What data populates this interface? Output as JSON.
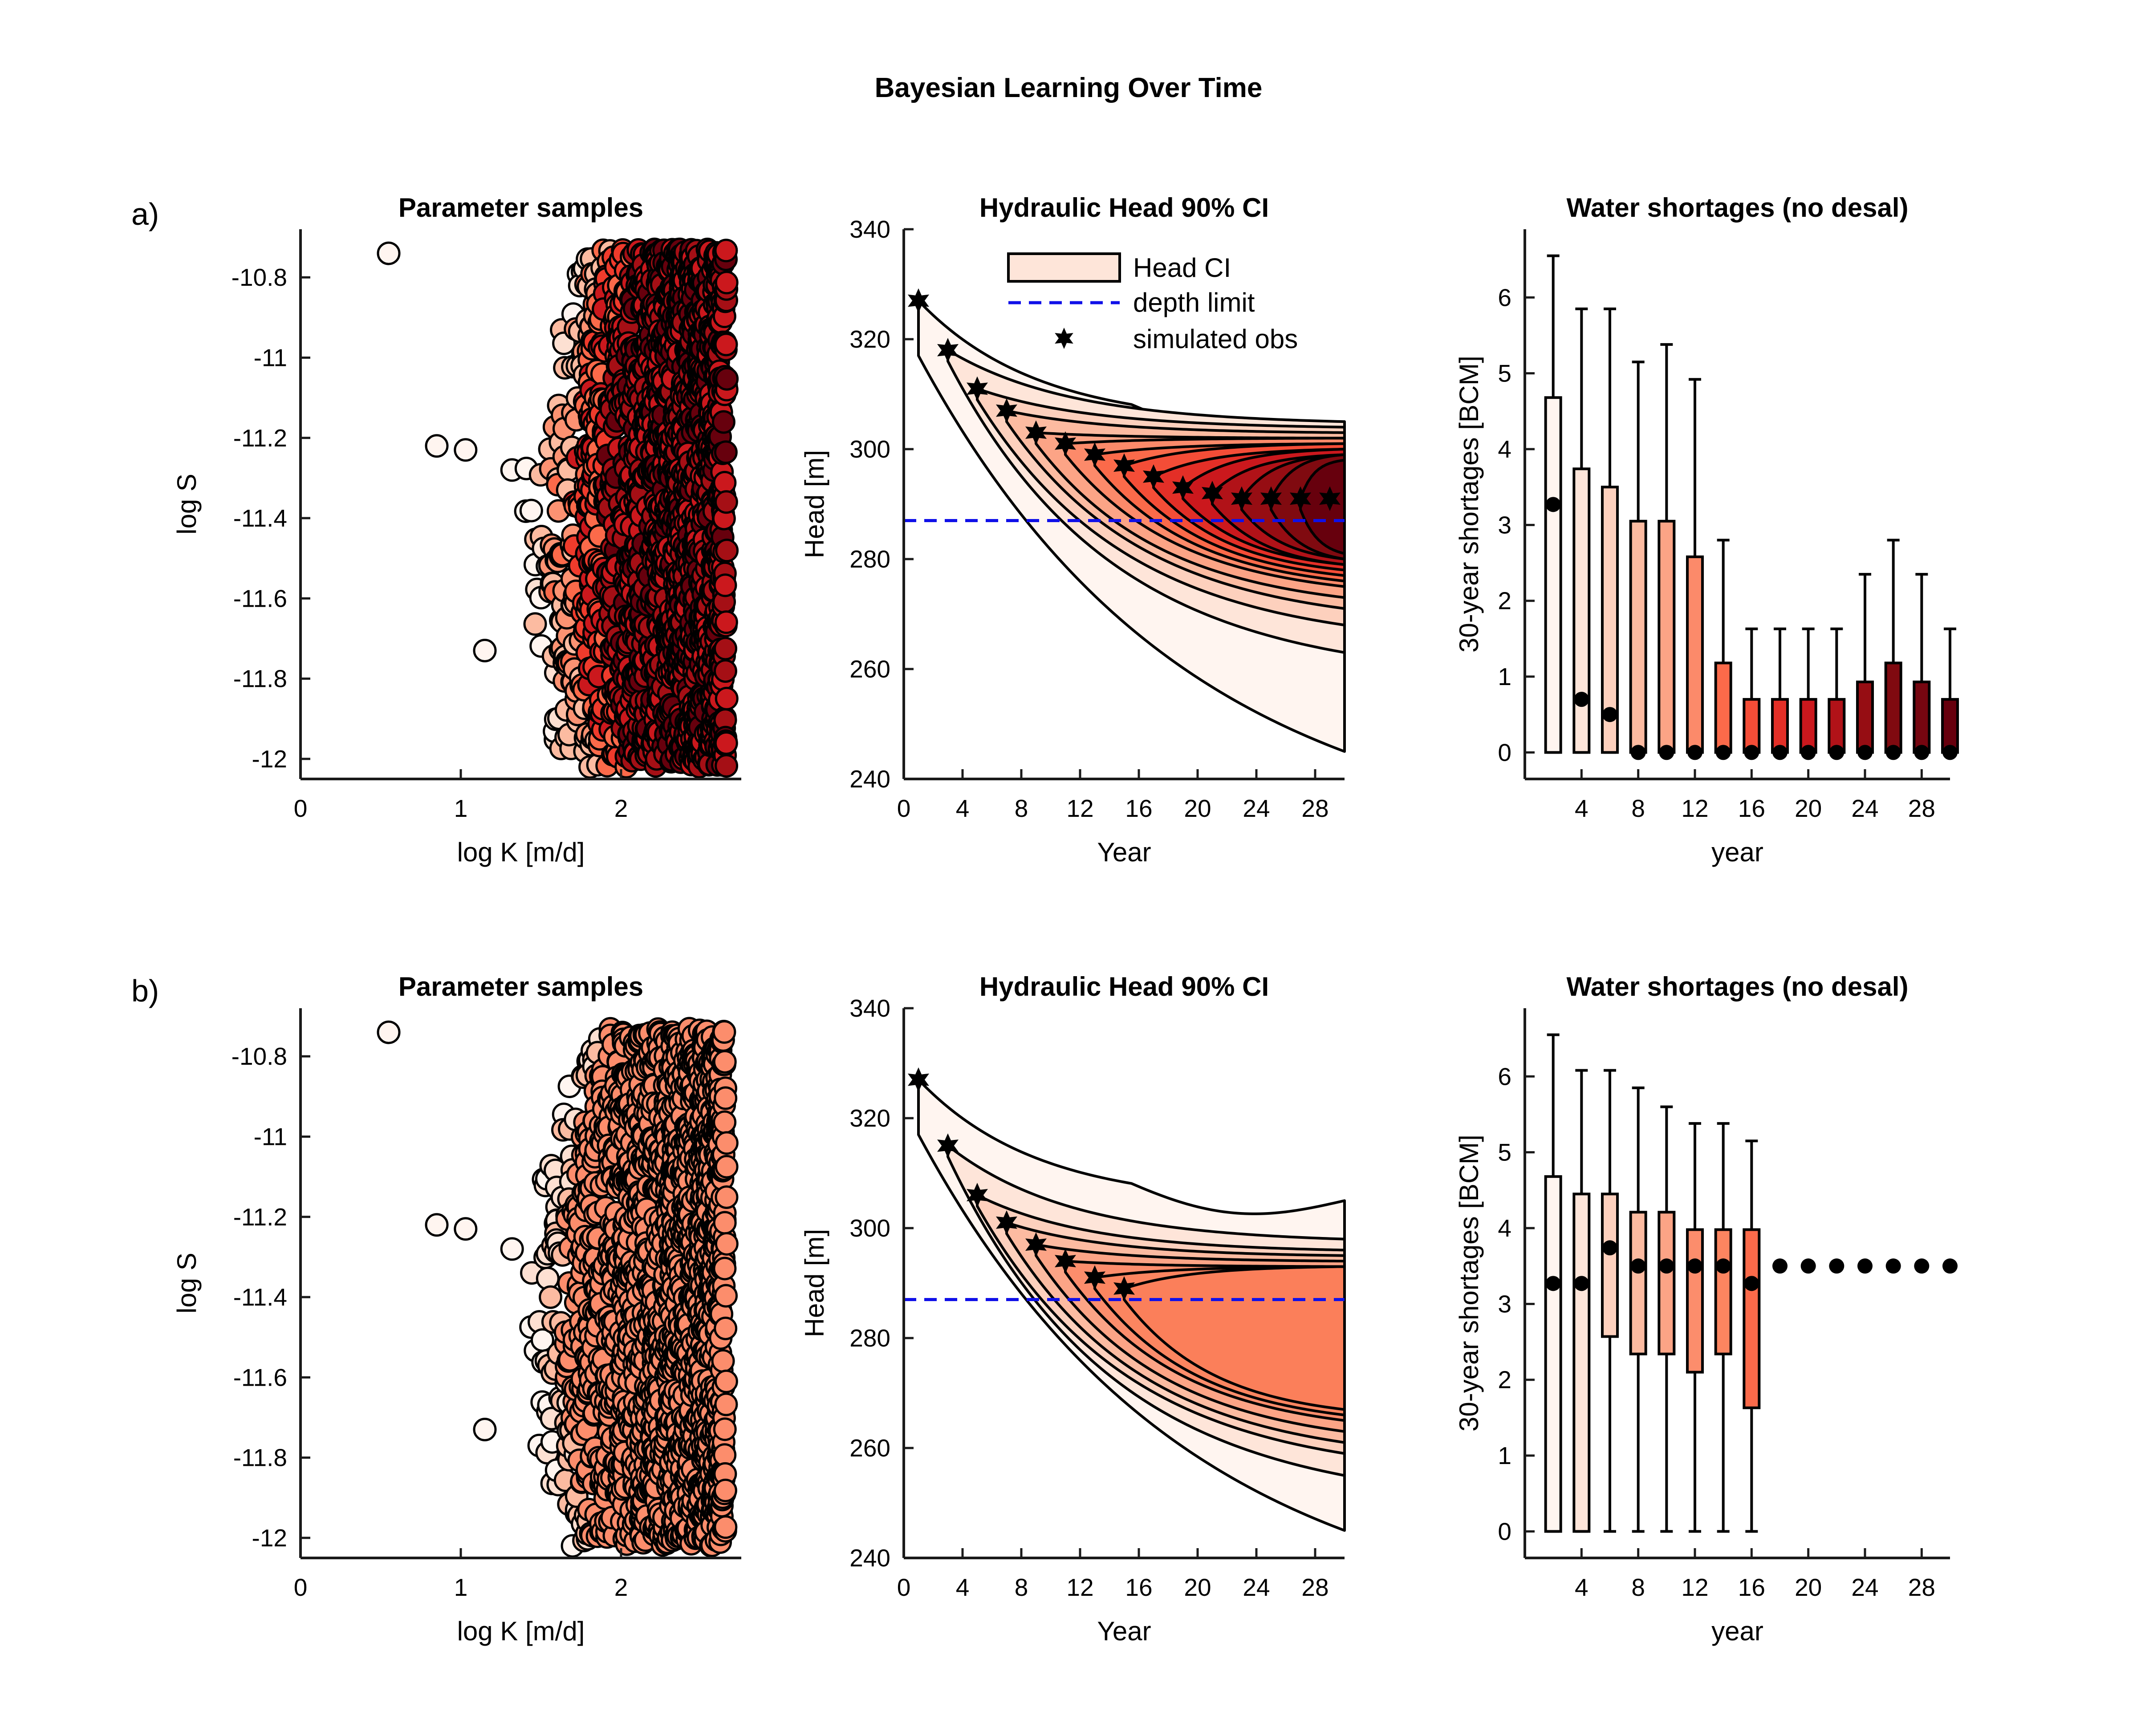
{
  "figure_title": "Bayesian Learning Over Time",
  "chart_data": [
    {
      "panel": "a)",
      "type": "scatter",
      "title": "Parameter samples",
      "xlabel": "log K [m/d]",
      "ylabel": "log S",
      "xlim": [
        0,
        2.75
      ],
      "ylim": [
        -12.05,
        -10.68
      ],
      "xticks": [
        "0",
        "1",
        "2"
      ],
      "yticks": [
        "-10.8",
        "-11",
        "-11.2",
        "-11.4",
        "-11.6",
        "-11.8",
        "-12"
      ],
      "color_scale": [
        "#fff5f0",
        "#fde0d2",
        "#fcbba1",
        "#fc9272",
        "#fb6a4a",
        "#ef3b2c",
        "#cb181d",
        "#a50f15",
        "#67000d"
      ],
      "outliers": [
        [
          0.55,
          -10.74
        ],
        [
          0.85,
          -11.22
        ],
        [
          1.03,
          -11.23
        ],
        [
          1.15,
          -11.73
        ],
        [
          1.32,
          -11.28
        ]
      ]
    },
    {
      "panel": "a)",
      "type": "area",
      "title": "Hydraulic Head 90% CI",
      "xlabel": "Year",
      "ylabel": "Head [m]",
      "xlim": [
        0,
        30
      ],
      "ylim": [
        240,
        340
      ],
      "xticks": [
        "0",
        "4",
        "8",
        "12",
        "16",
        "20",
        "24",
        "28"
      ],
      "yticks": [
        "240",
        "260",
        "280",
        "300",
        "320",
        "340"
      ],
      "legend": [
        "Head CI",
        "depth limit",
        "simulated obs"
      ],
      "legend_position": "top-right",
      "depth_limit": 287,
      "observations": {
        "year": [
          1,
          3,
          5,
          7,
          9,
          11,
          13,
          15,
          17,
          19,
          21,
          23,
          25,
          27,
          29
        ],
        "head": [
          327,
          318,
          311,
          307,
          303,
          301,
          299,
          297,
          295,
          293,
          292,
          291,
          291,
          291,
          291
        ]
      },
      "bands": [
        {
          "start": 1,
          "upper_end": 305,
          "lower_end": 245,
          "color": "#fff5f0"
        },
        {
          "start": 3,
          "upper_end": 305,
          "lower_end": 263,
          "color": "#fee5d9"
        },
        {
          "start": 5,
          "upper_end": 304,
          "lower_end": 268,
          "color": "#fdd0bd"
        },
        {
          "start": 7,
          "upper_end": 303,
          "lower_end": 271,
          "color": "#fcbba1"
        },
        {
          "start": 9,
          "upper_end": 302,
          "lower_end": 273,
          "color": "#fca486"
        },
        {
          "start": 11,
          "upper_end": 302,
          "lower_end": 275,
          "color": "#fc8a6a"
        },
        {
          "start": 13,
          "upper_end": 301,
          "lower_end": 276,
          "color": "#fb6a4a"
        },
        {
          "start": 15,
          "upper_end": 301,
          "lower_end": 277,
          "color": "#f44d37"
        },
        {
          "start": 17,
          "upper_end": 300,
          "lower_end": 278,
          "color": "#e32f27"
        },
        {
          "start": 19,
          "upper_end": 300,
          "lower_end": 279,
          "color": "#cb181d"
        },
        {
          "start": 21,
          "upper_end": 299,
          "lower_end": 279,
          "color": "#b11218"
        },
        {
          "start": 23,
          "upper_end": 299,
          "lower_end": 280,
          "color": "#960d13"
        },
        {
          "start": 25,
          "upper_end": 299,
          "lower_end": 280,
          "color": "#800a10"
        },
        {
          "start": 27,
          "upper_end": 298,
          "lower_end": 281,
          "color": "#67000d"
        }
      ]
    },
    {
      "panel": "a)",
      "type": "box",
      "title": "Water shortages (no desal)",
      "xlabel": "year",
      "ylabel": "30-year shortages [BCM]",
      "xlim": [
        0,
        30
      ],
      "ylim": [
        -0.35,
        6.9
      ],
      "xticks": [
        "4",
        "8",
        "12",
        "16",
        "20",
        "24",
        "28"
      ],
      "yticks": [
        "0",
        "1",
        "2",
        "3",
        "4",
        "5",
        "6"
      ],
      "boxes": [
        {
          "year": 2,
          "q1": 0,
          "q3": 4.68,
          "median": 3.27,
          "whisker_high": 6.55,
          "color": "#fff5f0"
        },
        {
          "year": 4,
          "q1": 0,
          "q3": 3.74,
          "median": 0.7,
          "whisker_high": 5.85,
          "color": "#fee5d9"
        },
        {
          "year": 6,
          "q1": 0,
          "q3": 3.5,
          "median": 0.5,
          "whisker_high": 5.85,
          "color": "#fdd0bd"
        },
        {
          "year": 8,
          "q1": 0,
          "q3": 3.05,
          "median": 0,
          "whisker_high": 5.15,
          "color": "#fcbba1"
        },
        {
          "year": 10,
          "q1": 0,
          "q3": 3.05,
          "median": 0,
          "whisker_high": 5.38,
          "color": "#fca486"
        },
        {
          "year": 12,
          "q1": 0,
          "q3": 2.58,
          "median": 0,
          "whisker_high": 4.92,
          "color": "#fc8a6a"
        },
        {
          "year": 14,
          "q1": 0,
          "q3": 1.18,
          "median": 0,
          "whisker_high": 2.8,
          "color": "#fb6a4a"
        },
        {
          "year": 16,
          "q1": 0,
          "q3": 0.7,
          "median": 0,
          "whisker_high": 1.63,
          "color": "#f44d37"
        },
        {
          "year": 18,
          "q1": 0,
          "q3": 0.7,
          "median": 0,
          "whisker_high": 1.63,
          "color": "#e32f27"
        },
        {
          "year": 20,
          "q1": 0,
          "q3": 0.7,
          "median": 0,
          "whisker_high": 1.63,
          "color": "#cb181d"
        },
        {
          "year": 22,
          "q1": 0,
          "q3": 0.7,
          "median": 0,
          "whisker_high": 1.63,
          "color": "#b11218"
        },
        {
          "year": 24,
          "q1": 0,
          "q3": 0.93,
          "median": 0,
          "whisker_high": 2.35,
          "color": "#960d13"
        },
        {
          "year": 26,
          "q1": 0,
          "q3": 1.18,
          "median": 0,
          "whisker_high": 2.8,
          "color": "#800a10"
        },
        {
          "year": 28,
          "q1": 0,
          "q3": 0.93,
          "median": 0,
          "whisker_high": 2.35,
          "color": "#760610"
        },
        {
          "year": 30,
          "q1": 0,
          "q3": 0.7,
          "median": 0,
          "whisker_high": 1.63,
          "color": "#67000d"
        }
      ]
    },
    {
      "panel": "b)",
      "type": "scatter",
      "title": "Parameter samples",
      "xlabel": "log K [m/d]",
      "ylabel": "log S",
      "xlim": [
        0,
        2.75
      ],
      "ylim": [
        -12.05,
        -10.68
      ],
      "xticks": [
        "0",
        "1",
        "2"
      ],
      "yticks": [
        "-10.8",
        "-11",
        "-11.2",
        "-11.4",
        "-11.6",
        "-11.8",
        "-12"
      ],
      "color_scale": [
        "#fff5f0",
        "#fde0d2",
        "#fcbba1",
        "#fc8d6c"
      ],
      "outliers": [
        [
          0.55,
          -10.74
        ],
        [
          0.85,
          -11.22
        ],
        [
          1.03,
          -11.23
        ],
        [
          1.15,
          -11.73
        ],
        [
          1.32,
          -11.28
        ]
      ]
    },
    {
      "panel": "b)",
      "type": "area",
      "title": "Hydraulic Head 90% CI",
      "xlabel": "Year",
      "ylabel": "Head [m]",
      "xlim": [
        0,
        30
      ],
      "ylim": [
        240,
        340
      ],
      "xticks": [
        "0",
        "4",
        "8",
        "12",
        "16",
        "20",
        "24",
        "28"
      ],
      "yticks": [
        "240",
        "260",
        "280",
        "300",
        "320",
        "340"
      ],
      "depth_limit": 287,
      "observations": {
        "year": [
          1,
          3,
          5,
          7,
          9,
          11,
          13,
          15
        ],
        "head": [
          327,
          315,
          306,
          301,
          297,
          294,
          291,
          289
        ]
      },
      "bands": [
        {
          "start": 1,
          "upper_end": 305,
          "lower_end": 245,
          "color": "#fff5f0"
        },
        {
          "start": 3,
          "upper_end": 298,
          "lower_end": 255,
          "color": "#fee5d9"
        },
        {
          "start": 5,
          "upper_end": 296,
          "lower_end": 259,
          "color": "#fdd0bd"
        },
        {
          "start": 7,
          "upper_end": 295,
          "lower_end": 261,
          "color": "#fcbba1"
        },
        {
          "start": 9,
          "upper_end": 294,
          "lower_end": 263,
          "color": "#fca486"
        },
        {
          "start": 11,
          "upper_end": 293,
          "lower_end": 265,
          "color": "#fc8d6c"
        },
        {
          "start": 13,
          "upper_end": 293,
          "lower_end": 266,
          "color": "#fc8560"
        },
        {
          "start": 15,
          "upper_end": 293,
          "lower_end": 267,
          "color": "#fb7f5a"
        }
      ]
    },
    {
      "panel": "b)",
      "type": "box",
      "title": "Water shortages (no desal)",
      "xlabel": "year",
      "ylabel": "30-year shortages [BCM]",
      "xlim": [
        0,
        30
      ],
      "ylim": [
        -0.35,
        6.9
      ],
      "xticks": [
        "4",
        "8",
        "12",
        "16",
        "20",
        "24",
        "28"
      ],
      "yticks": [
        "0",
        "1",
        "2",
        "3",
        "4",
        "5",
        "6"
      ],
      "boxes": [
        {
          "year": 2,
          "q1": 0,
          "q3": 4.68,
          "median": 3.27,
          "whisker_high": 6.55,
          "color": "#fff5f0"
        },
        {
          "year": 4,
          "q1": 0,
          "q3": 4.45,
          "median": 3.27,
          "whisker_high": 6.08,
          "color": "#fee5d9"
        },
        {
          "year": 6,
          "q1": 2.57,
          "q3": 4.45,
          "median": 3.74,
          "whisker_high": 6.08,
          "color": "#fdd0bd"
        },
        {
          "year": 8,
          "q1": 2.34,
          "q3": 4.21,
          "median": 3.5,
          "whisker_high": 5.85,
          "color": "#fcbba1"
        },
        {
          "year": 10,
          "q1": 2.34,
          "q3": 4.21,
          "median": 3.5,
          "whisker_high": 5.6,
          "color": "#fca486"
        },
        {
          "year": 12,
          "q1": 2.1,
          "q3": 3.98,
          "median": 3.5,
          "whisker_high": 5.38,
          "color": "#fc8d6c"
        },
        {
          "year": 14,
          "q1": 2.34,
          "q3": 3.98,
          "median": 3.5,
          "whisker_high": 5.38,
          "color": "#fc8560"
        },
        {
          "year": 16,
          "q1": 1.63,
          "q3": 3.98,
          "median": 3.27,
          "whisker_high": 5.15,
          "color": "#fb6a4a"
        },
        {
          "year": 18,
          "median": 3.5
        },
        {
          "year": 20,
          "median": 3.5
        },
        {
          "year": 22,
          "median": 3.5
        },
        {
          "year": 24,
          "median": 3.5
        },
        {
          "year": 26,
          "median": 3.5
        },
        {
          "year": 28,
          "median": 3.5
        },
        {
          "year": 30,
          "median": 3.5
        }
      ]
    }
  ]
}
